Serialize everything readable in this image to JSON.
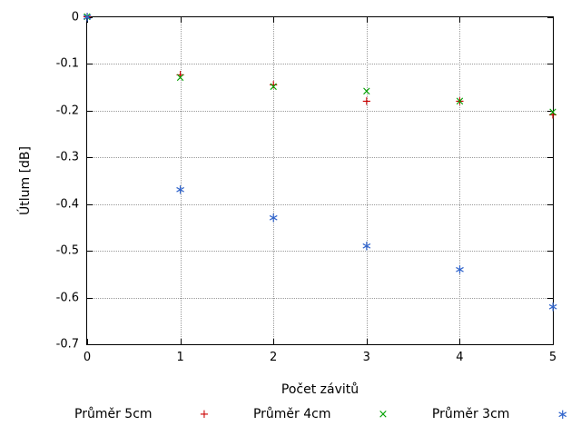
{
  "chart_data": {
    "type": "scatter",
    "title": "",
    "xlabel": "Počet závitů",
    "ylabel": "Útlum [dB]",
    "xlim": [
      0,
      5
    ],
    "ylim": [
      -0.7,
      0
    ],
    "grid": true,
    "legend_position": "bottom",
    "xtick_values": [
      0,
      1,
      2,
      3,
      4,
      5
    ],
    "xtick_labels": [
      "0",
      "1",
      "2",
      "3",
      "4",
      "5"
    ],
    "ytick_values": [
      0,
      -0.1,
      -0.2,
      -0.3,
      -0.4,
      -0.5,
      -0.6,
      -0.7
    ],
    "ytick_labels": [
      "0",
      "-0.1",
      "-0.2",
      "-0.3",
      "-0.4",
      "-0.5",
      "-0.6",
      "-0.7"
    ],
    "series": [
      {
        "name": "Průměr 5cm",
        "marker": "plus",
        "marker_glyph": "+",
        "color": "#cc0000",
        "points": [
          [
            0,
            0
          ],
          [
            1,
            -0.125
          ],
          [
            2,
            -0.145
          ],
          [
            3,
            -0.18
          ],
          [
            4,
            -0.18
          ],
          [
            5,
            -0.21
          ]
        ]
      },
      {
        "name": "Průměr 4cm",
        "marker": "cross",
        "marker_glyph": "×",
        "color": "#00a000",
        "points": [
          [
            0,
            0
          ],
          [
            1,
            -0.13
          ],
          [
            2,
            -0.15
          ],
          [
            3,
            -0.16
          ],
          [
            4,
            -0.18
          ],
          [
            5,
            -0.205
          ]
        ]
      },
      {
        "name": "Průměr 3cm",
        "marker": "asterisk",
        "marker_glyph": "∗",
        "color": "#3366cc",
        "points": [
          [
            0,
            0
          ],
          [
            1,
            -0.37
          ],
          [
            2,
            -0.43
          ],
          [
            3,
            -0.49
          ],
          [
            4,
            -0.54
          ],
          [
            5,
            -0.62
          ]
        ]
      }
    ]
  }
}
